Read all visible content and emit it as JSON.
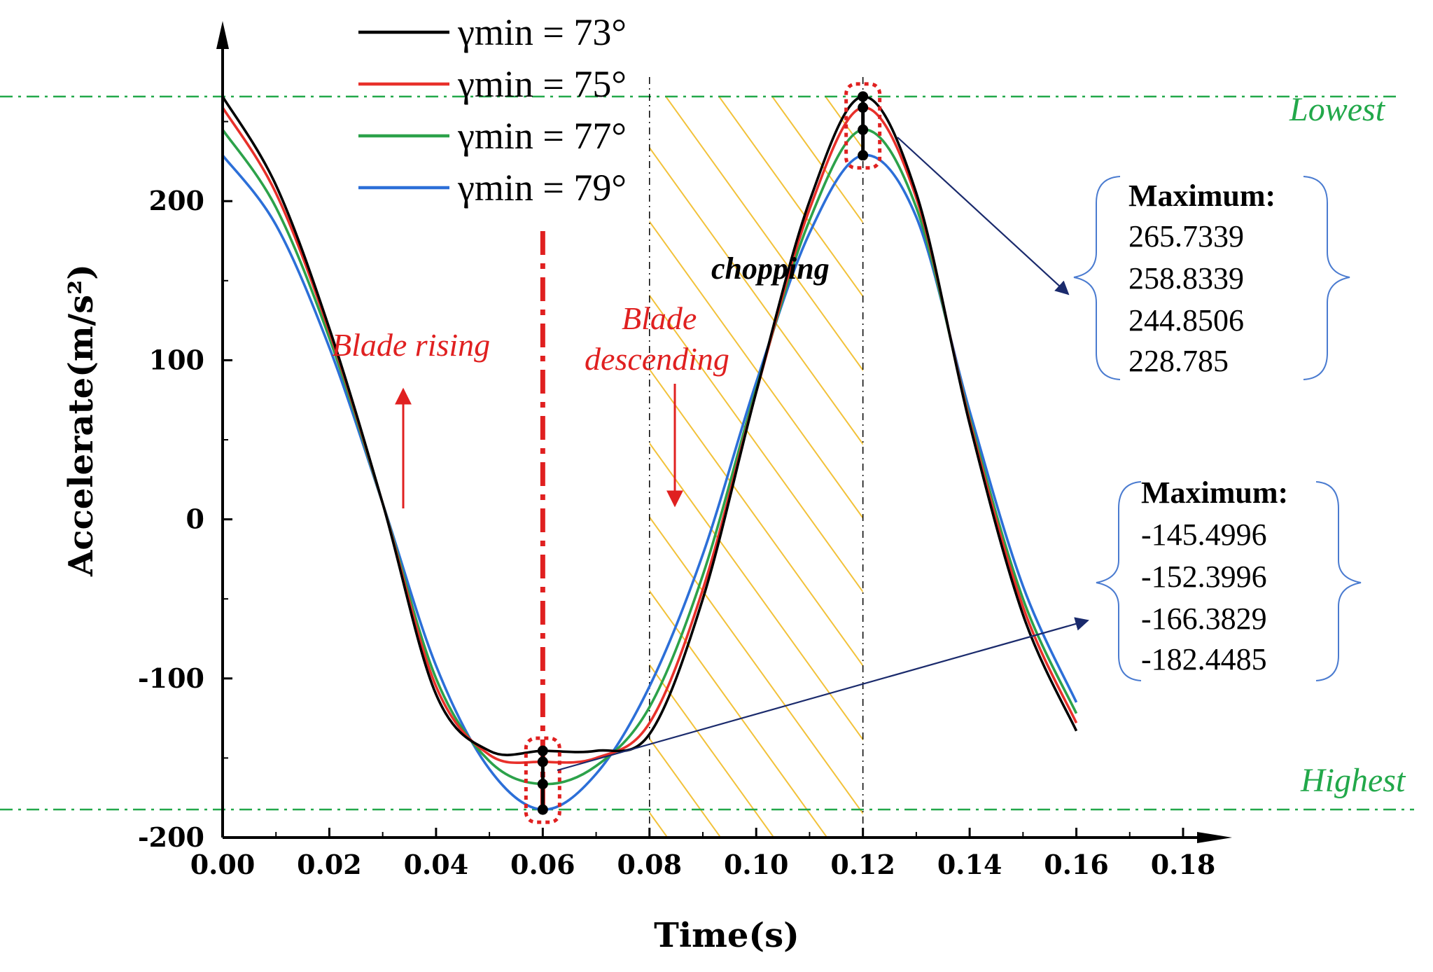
{
  "chart_data": {
    "type": "line",
    "title": "",
    "xlabel": "Time(s)",
    "ylabel": "Accelerate(m/s²)",
    "xlim": [
      0,
      0.18
    ],
    "ylim": [
      -200,
      300
    ],
    "x_ticks": [
      "0.00",
      "0.02",
      "0.04",
      "0.06",
      "0.08",
      "0.10",
      "0.12",
      "0.14",
      "0.16",
      "0.18"
    ],
    "x_tick_values": [
      0,
      0.02,
      0.04,
      0.06,
      0.08,
      0.1,
      0.12,
      0.14,
      0.16,
      0.18
    ],
    "y_ticks": [
      "-200",
      "-100",
      "0",
      "100",
      "200"
    ],
    "y_tick_values": [
      -200,
      -100,
      0,
      100,
      200
    ],
    "legend_position": "top-left",
    "series": [
      {
        "name": "γmin = 73°",
        "color": "#000000",
        "x": [
          0,
          0.01,
          0.02,
          0.03,
          0.04,
          0.05,
          0.06,
          0.07,
          0.08,
          0.09,
          0.1,
          0.11,
          0.12,
          0.13,
          0.14,
          0.15,
          0.16
        ],
        "y": [
          265.7,
          210,
          120,
          10,
          -110,
          -145.5,
          -145.5,
          -145.5,
          -135,
          -50,
          80,
          200,
          265.7,
          205,
          60,
          -60,
          -133
        ]
      },
      {
        "name": "γmin = 75°",
        "color": "#e8302a",
        "x": [
          0,
          0.01,
          0.02,
          0.03,
          0.04,
          0.05,
          0.06,
          0.07,
          0.08,
          0.09,
          0.1,
          0.11,
          0.12,
          0.13,
          0.14,
          0.15,
          0.16
        ],
        "y": [
          258.8,
          205,
          118,
          10,
          -105,
          -148,
          -152.4,
          -150,
          -128,
          -44,
          80,
          195,
          258.8,
          202,
          62,
          -55,
          -128
        ]
      },
      {
        "name": "γmin = 77°",
        "color": "#2ca24a",
        "x": [
          0,
          0.01,
          0.02,
          0.03,
          0.04,
          0.05,
          0.06,
          0.07,
          0.08,
          0.09,
          0.1,
          0.11,
          0.12,
          0.13,
          0.14,
          0.15,
          0.16
        ],
        "y": [
          244.9,
          196,
          114,
          10,
          -100,
          -152,
          -166.4,
          -155,
          -118,
          -35,
          82,
          188,
          244.9,
          196,
          64,
          -50,
          -122
        ]
      },
      {
        "name": "γmin = 79°",
        "color": "#2c6fd8",
        "x": [
          0,
          0.01,
          0.02,
          0.03,
          0.04,
          0.05,
          0.06,
          0.07,
          0.08,
          0.09,
          0.1,
          0.11,
          0.12,
          0.13,
          0.14,
          0.15,
          0.16
        ],
        "y": [
          228.8,
          185,
          108,
          10,
          -92,
          -157,
          -182.4,
          -160,
          -105,
          -22,
          86,
          180,
          228.8,
          190,
          68,
          -42,
          -115
        ]
      }
    ],
    "reference_lines": {
      "lowest_y": 265.7,
      "highest_y": -182.4,
      "lowest_label": "Lowest",
      "highest_label": "Highest",
      "color": "#22a84a"
    },
    "markers": {
      "min_time": 0.06,
      "max_time": 0.12,
      "min_values": [
        -145.4996,
        -152.3996,
        -166.3829,
        -182.4485
      ],
      "max_values": [
        265.7339,
        258.8339,
        244.8506,
        228.785
      ]
    },
    "regions": {
      "chopping_start": 0.08,
      "chopping_end": 0.12,
      "hatch_color": "#f2c23a",
      "divider_time": 0.06
    },
    "annotations": {
      "blade_rising": "Blade rising",
      "blade_descending_line1": "Blade",
      "blade_descending_line2": "descending",
      "chopping": "chopping"
    },
    "max_box": {
      "title": "Maximum:",
      "values": [
        "265.7339",
        "258.8339",
        "244.8506",
        "228.785"
      ]
    },
    "min_box": {
      "title": "Maximum:",
      "values": [
        "-145.4996",
        "-152.3996",
        "-166.3829",
        "-182.4485"
      ]
    }
  }
}
